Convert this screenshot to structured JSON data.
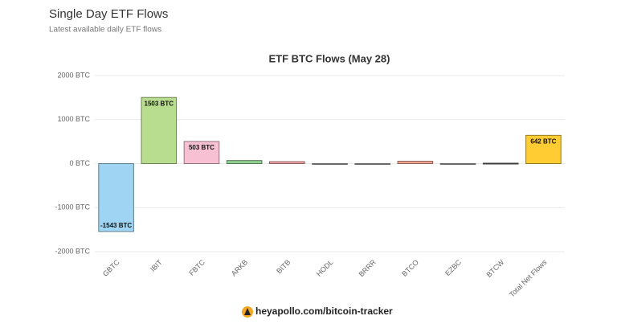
{
  "header": {
    "title": "Single Day ETF Flows",
    "subtitle": "Latest available daily ETF flows"
  },
  "footer": "heyapollo.com/bitcoin-tracker",
  "chart_data": {
    "type": "bar",
    "title": "ETF BTC Flows (May 28)",
    "categories": [
      "GBTC",
      "IBIT",
      "FBTC",
      "ARKB",
      "BITB",
      "HODL",
      "BRRR",
      "BTCO",
      "EZBC",
      "BTCW",
      "Total Net Flows"
    ],
    "values": [
      -1543,
      1503,
      503,
      70,
      45,
      0,
      0,
      55,
      0,
      9,
      642
    ],
    "value_labels": [
      "-1543 BTC",
      "1503 BTC",
      "503 BTC",
      null,
      null,
      null,
      null,
      null,
      null,
      null,
      "642 BTC"
    ],
    "colors": [
      "#9fd4f2",
      "#b9dd8f",
      "#f8c1d3",
      "#8fd18f",
      "#f3a3a3",
      "#b0b0b0",
      "#b0b0b0",
      "#f2a391",
      "#b0b0b0",
      "#666666",
      "#ffcc33"
    ],
    "ylim": [
      -2000,
      2000
    ],
    "yticks": [
      {
        "value": -2000,
        "label": "-2000 BTC"
      },
      {
        "value": -1000,
        "label": "-1000 BTC"
      },
      {
        "value": 0,
        "label": "0 BTC"
      },
      {
        "value": 1000,
        "label": "1000 BTC"
      },
      {
        "value": 2000,
        "label": "2000 BTC"
      }
    ],
    "grid": true
  }
}
